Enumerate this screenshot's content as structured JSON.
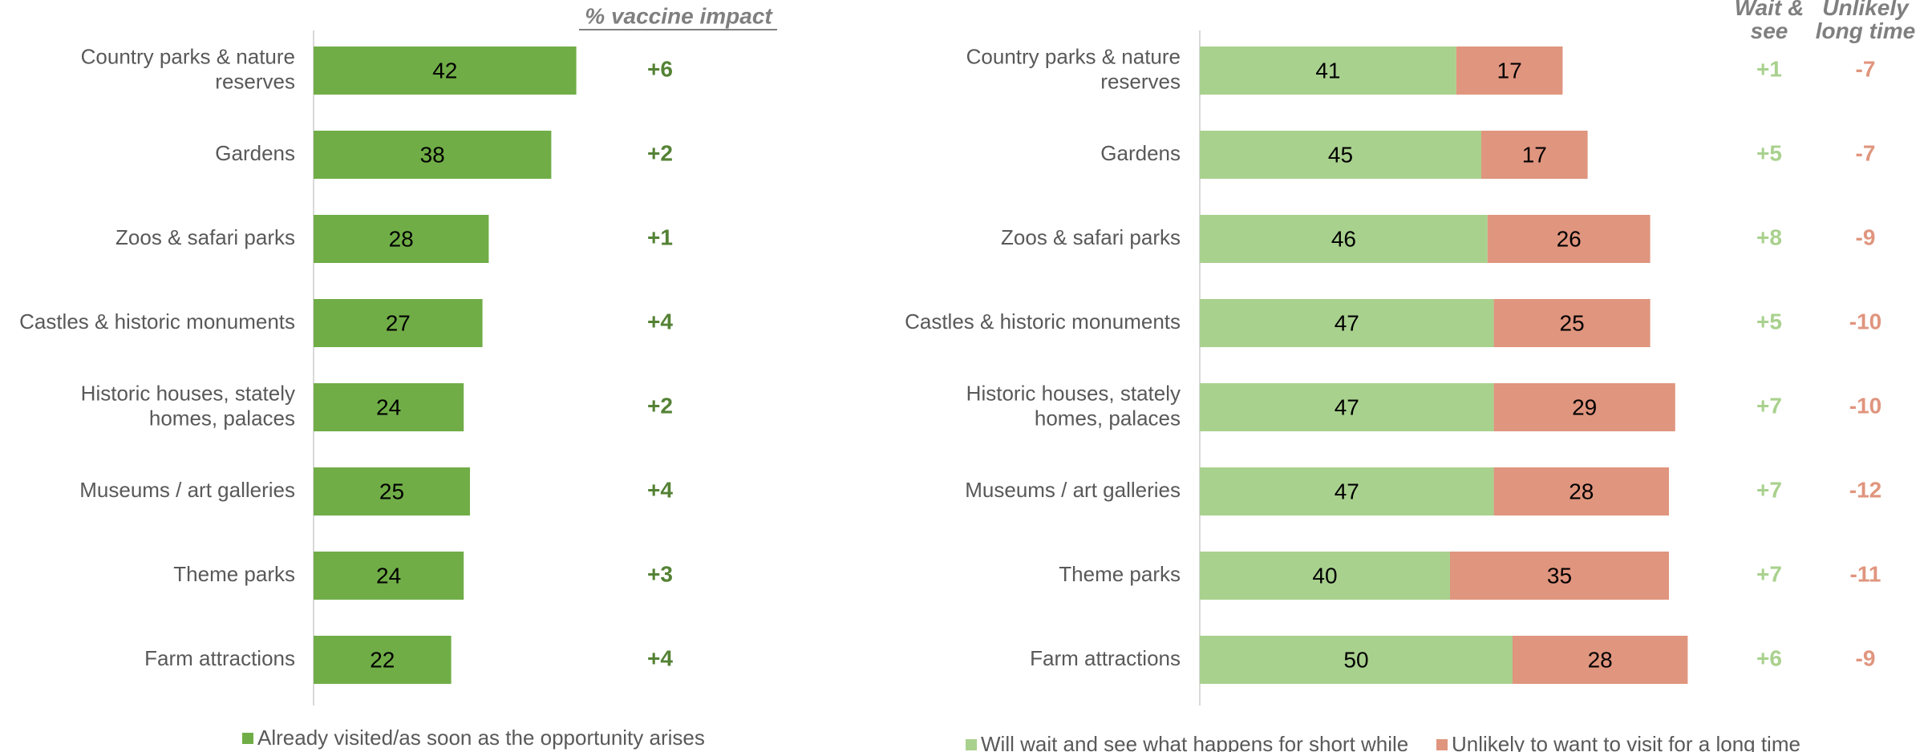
{
  "chart_data": [
    {
      "type": "bar",
      "orientation": "horizontal",
      "categories": [
        [
          "Country parks & nature",
          "reserves"
        ],
        [
          "Gardens"
        ],
        [
          "Zoos & safari parks"
        ],
        [
          "Castles & historic monuments"
        ],
        [
          "Historic houses, stately",
          "homes, palaces"
        ],
        [
          "Museums / art galleries"
        ],
        [
          "Theme parks"
        ],
        [
          "Farm attractions"
        ]
      ],
      "series": [
        {
          "name": "Already visited/as soon as the opportunity arises",
          "values": [
            42,
            38,
            28,
            27,
            24,
            25,
            24,
            22
          ],
          "color": "#70ad47"
        }
      ],
      "impact_header": "% vaccine impact",
      "impact": [
        "+6",
        "+2",
        "+1",
        "+4",
        "+2",
        "+4",
        "+3",
        "+4"
      ],
      "impact_color": "#548235",
      "legend_position": "bottom",
      "grid": false
    },
    {
      "type": "bar",
      "stacked": true,
      "orientation": "horizontal",
      "categories": [
        [
          "Country parks & nature",
          "reserves"
        ],
        [
          "Gardens"
        ],
        [
          "Zoos & safari parks"
        ],
        [
          "Castles & historic monuments"
        ],
        [
          "Historic houses, stately",
          "homes, palaces"
        ],
        [
          "Museums / art galleries"
        ],
        [
          "Theme parks"
        ],
        [
          "Farm attractions"
        ]
      ],
      "series": [
        {
          "name": "Will wait and see what happens for short while",
          "values": [
            41,
            45,
            46,
            47,
            47,
            47,
            40,
            50
          ],
          "color": "#a9d18e"
        },
        {
          "name": "Unlikely to want to visit for a long time",
          "values": [
            17,
            17,
            26,
            25,
            29,
            28,
            35,
            28
          ],
          "color": "#e0957e"
        }
      ],
      "impact_headers": [
        [
          "Wait &",
          "see"
        ],
        [
          "Unlikely",
          "long time"
        ]
      ],
      "impact_wait": [
        "+1",
        "+5",
        "+8",
        "+5",
        "+7",
        "+7",
        "+7",
        "+6"
      ],
      "impact_unlikely": [
        "-7",
        "-7",
        "-9",
        "-10",
        "-10",
        "-12",
        "-11",
        "-9"
      ],
      "impact_wait_color": "#a9d18e",
      "impact_unlikely_color": "#e0957e",
      "legend_position": "bottom",
      "grid": false
    }
  ]
}
